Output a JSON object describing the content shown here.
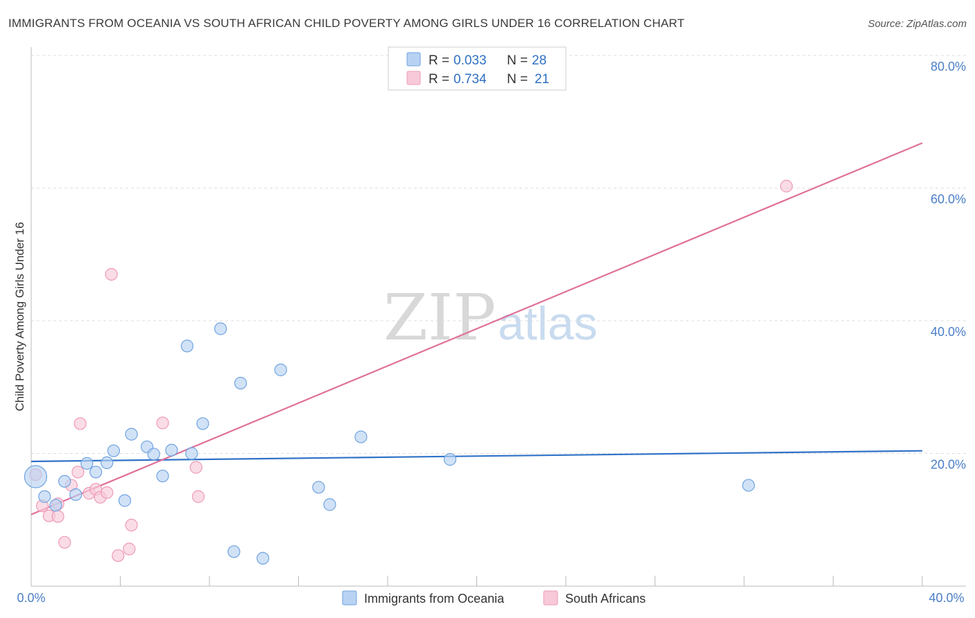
{
  "chart_data": {
    "type": "scatter",
    "title": "IMMIGRANTS FROM OCEANIA VS SOUTH AFRICAN CHILD POVERTY AMONG GIRLS UNDER 16 CORRELATION CHART",
    "source": "Source: ZipAtlas.com",
    "xlabel": "",
    "ylabel": "Child Poverty Among Girls Under 16",
    "xlim": [
      0,
      40
    ],
    "ylim": [
      0,
      80
    ],
    "x_tick_labels": [
      "0.0%",
      "40.0%"
    ],
    "y_tick_labels": [
      "20.0%",
      "40.0%",
      "60.0%",
      "80.0%"
    ],
    "y_ticks": [
      20,
      40,
      60,
      80
    ],
    "grid": true,
    "watermark": {
      "part1": "ZIP",
      "part2": "atlas"
    },
    "legend": {
      "rows": [
        {
          "r_label": "R = ",
          "r_value": "0.033",
          "n_label": "N = ",
          "n_value": "28"
        },
        {
          "r_label": "R = ",
          "r_value": "0.734",
          "n_label": "N = ",
          "n_value": "21"
        }
      ]
    },
    "series": [
      {
        "name": "Immigrants from Oceania",
        "color": "#6fa3e0",
        "fill": "#b8d2f3",
        "line_color": "#2f72c8",
        "trend": {
          "x": [
            0,
            40
          ],
          "y": [
            18.8,
            20.4
          ]
        },
        "points": [
          {
            "x": 0.2,
            "y": 16.5,
            "big": true
          },
          {
            "x": 0.6,
            "y": 13.5
          },
          {
            "x": 1.1,
            "y": 12.2
          },
          {
            "x": 1.5,
            "y": 15.8
          },
          {
            "x": 2.0,
            "y": 13.8
          },
          {
            "x": 2.5,
            "y": 18.5
          },
          {
            "x": 2.9,
            "y": 17.2
          },
          {
            "x": 3.4,
            "y": 18.6
          },
          {
            "x": 3.7,
            "y": 20.4
          },
          {
            "x": 4.2,
            "y": 12.9
          },
          {
            "x": 4.5,
            "y": 22.9
          },
          {
            "x": 5.2,
            "y": 21.0
          },
          {
            "x": 5.5,
            "y": 19.9
          },
          {
            "x": 5.9,
            "y": 16.6
          },
          {
            "x": 6.3,
            "y": 20.5
          },
          {
            "x": 7.0,
            "y": 36.2
          },
          {
            "x": 7.2,
            "y": 20.0
          },
          {
            "x": 7.7,
            "y": 24.5
          },
          {
            "x": 8.5,
            "y": 38.8
          },
          {
            "x": 9.1,
            "y": 5.2
          },
          {
            "x": 9.4,
            "y": 30.6
          },
          {
            "x": 10.4,
            "y": 4.2
          },
          {
            "x": 11.2,
            "y": 32.6
          },
          {
            "x": 12.9,
            "y": 14.9
          },
          {
            "x": 13.4,
            "y": 12.3
          },
          {
            "x": 14.8,
            "y": 22.5
          },
          {
            "x": 18.8,
            "y": 19.1
          },
          {
            "x": 32.2,
            "y": 15.2
          }
        ]
      },
      {
        "name": "South Africans",
        "color": "#ee9ab5",
        "fill": "#f8c9d8",
        "line_color": "#e0709a",
        "trend": {
          "x": [
            0,
            40
          ],
          "y": [
            10.8,
            66.8
          ]
        },
        "points": [
          {
            "x": 0.2,
            "y": 16.8
          },
          {
            "x": 0.5,
            "y": 12.1
          },
          {
            "x": 0.8,
            "y": 10.6
          },
          {
            "x": 1.2,
            "y": 12.4
          },
          {
            "x": 1.2,
            "y": 10.5
          },
          {
            "x": 1.5,
            "y": 6.6
          },
          {
            "x": 1.8,
            "y": 15.2
          },
          {
            "x": 2.1,
            "y": 17.2
          },
          {
            "x": 2.2,
            "y": 24.5
          },
          {
            "x": 2.6,
            "y": 14.0
          },
          {
            "x": 2.9,
            "y": 14.6
          },
          {
            "x": 3.1,
            "y": 13.4
          },
          {
            "x": 3.4,
            "y": 14.1
          },
          {
            "x": 3.6,
            "y": 47.0
          },
          {
            "x": 3.9,
            "y": 4.6
          },
          {
            "x": 4.4,
            "y": 5.6
          },
          {
            "x": 4.5,
            "y": 9.2
          },
          {
            "x": 5.9,
            "y": 24.6
          },
          {
            "x": 7.4,
            "y": 17.9
          },
          {
            "x": 7.5,
            "y": 13.5
          },
          {
            "x": 33.9,
            "y": 60.3
          }
        ]
      }
    ]
  }
}
